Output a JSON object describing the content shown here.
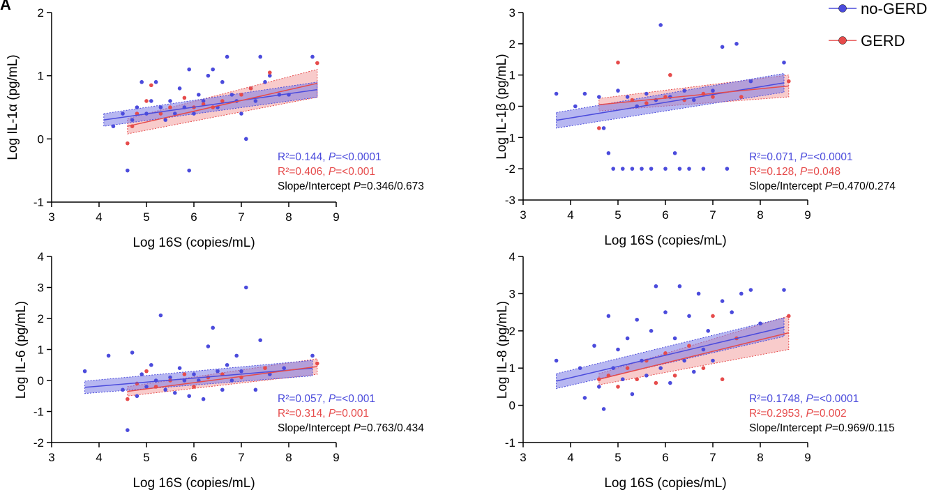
{
  "figure": {
    "panel_letter": "A",
    "colors": {
      "no_gerd": "#4b4bdc",
      "gerd": "#e64b4b",
      "no_gerd_band": "#7b7be6",
      "gerd_band": "#f3a0a0"
    }
  },
  "legend": [
    {
      "name": "no-GERD",
      "color": "#4b4bdc"
    },
    {
      "name": "GERD",
      "color": "#e64b4b"
    }
  ],
  "panels": [
    {
      "stats": [
        {
          "line1": "R²=0.144, ",
          "p_label": "P",
          "p_value": "=<0.0001",
          "color": "#4b4bdc"
        },
        {
          "line1": "R²=0.406, ",
          "p_label": "P",
          "p_value": "=<0.001",
          "color": "#e64b4b"
        },
        {
          "line1": "Slope/Intercept ",
          "p_label": "P",
          "p_value": "=0.346/0.673",
          "color": "#000000"
        }
      ]
    },
    {
      "stats": [
        {
          "line1": "R²=0.071, ",
          "p_label": "P",
          "p_value": "=<0.0001",
          "color": "#4b4bdc"
        },
        {
          "line1": "R²=0.128, ",
          "p_label": "P",
          "p_value": "=0.048",
          "color": "#e64b4b"
        },
        {
          "line1": "Slope/Intercept ",
          "p_label": "P",
          "p_value": "=0.470/0.274",
          "color": "#000000"
        }
      ]
    },
    {
      "stats": [
        {
          "line1": "R²=0.057, ",
          "p_label": "P",
          "p_value": "=<0.001",
          "color": "#4b4bdc"
        },
        {
          "line1": "R²=0.314, ",
          "p_label": "P",
          "p_value": "=0.001",
          "color": "#e64b4b"
        },
        {
          "line1": "Slope/Intercept ",
          "p_label": "P",
          "p_value": "=0.763/0.434",
          "color": "#000000"
        }
      ]
    },
    {
      "stats": [
        {
          "line1": "R²=0.1748, ",
          "p_label": "P",
          "p_value": "=<0.0001",
          "color": "#4b4bdc"
        },
        {
          "line1": "R²=0.2953, ",
          "p_label": "P",
          "p_value": "=0.002",
          "color": "#e64b4b"
        },
        {
          "line1": "Slope/Intercept ",
          "p_label": "P",
          "p_value": "=0.969/0.115",
          "color": "#000000"
        }
      ]
    }
  ],
  "chart_data": [
    {
      "type": "scatter",
      "xlabel": "Log 16S (copies/mL)",
      "ylabel": "Log IL-1α (pg/mL)",
      "xlim": [
        3,
        9
      ],
      "ylim": [
        -1,
        2
      ],
      "xticks": [
        3,
        4,
        5,
        6,
        7,
        8,
        9
      ],
      "yticks": [
        -1,
        0,
        1,
        2
      ],
      "series": [
        {
          "name": "no-GERD",
          "color": "#4b4bdc",
          "fit": {
            "x": [
              4.1,
              8.6
            ],
            "y": [
              0.3,
              0.78
            ],
            "band": [
              0.1,
              0.12
            ]
          },
          "points": [
            [
              4.3,
              0.2
            ],
            [
              4.5,
              0.4
            ],
            [
              4.6,
              -0.5
            ],
            [
              4.7,
              0.3
            ],
            [
              4.8,
              0.5
            ],
            [
              4.9,
              0.9
            ],
            [
              5.0,
              0.4
            ],
            [
              5.1,
              0.6
            ],
            [
              5.2,
              0.9
            ],
            [
              5.3,
              0.5
            ],
            [
              5.4,
              0.3
            ],
            [
              5.5,
              0.6
            ],
            [
              5.6,
              0.4
            ],
            [
              5.7,
              0.8
            ],
            [
              5.8,
              0.5
            ],
            [
              5.9,
              1.1
            ],
            [
              5.9,
              -0.5
            ],
            [
              6.0,
              0.4
            ],
            [
              6.1,
              0.7
            ],
            [
              6.2,
              0.6
            ],
            [
              6.3,
              1.0
            ],
            [
              6.4,
              1.1
            ],
            [
              6.5,
              0.5
            ],
            [
              6.6,
              0.9
            ],
            [
              6.7,
              1.3
            ],
            [
              6.8,
              0.7
            ],
            [
              6.9,
              0.6
            ],
            [
              7.0,
              0.4
            ],
            [
              7.1,
              0.0
            ],
            [
              7.2,
              0.8
            ],
            [
              7.3,
              0.6
            ],
            [
              7.4,
              1.3
            ],
            [
              7.5,
              0.9
            ],
            [
              7.6,
              1.0
            ],
            [
              7.8,
              0.7
            ],
            [
              8.0,
              0.7
            ],
            [
              8.5,
              1.3
            ]
          ]
        },
        {
          "name": "GERD",
          "color": "#e64b4b",
          "fit": {
            "x": [
              4.6,
              8.6
            ],
            "y": [
              0.2,
              0.88
            ],
            "band": [
              0.12,
              0.22
            ]
          },
          "points": [
            [
              4.6,
              -0.07
            ],
            [
              4.7,
              0.2
            ],
            [
              4.8,
              0.4
            ],
            [
              5.0,
              0.6
            ],
            [
              5.1,
              0.85
            ],
            [
              5.3,
              0.4
            ],
            [
              5.5,
              0.5
            ],
            [
              5.8,
              0.65
            ],
            [
              6.0,
              0.5
            ],
            [
              6.2,
              0.55
            ],
            [
              6.4,
              0.5
            ],
            [
              6.6,
              0.6
            ],
            [
              7.0,
              0.7
            ],
            [
              7.2,
              0.8
            ],
            [
              7.6,
              1.05
            ],
            [
              8.6,
              1.2
            ]
          ]
        }
      ]
    },
    {
      "type": "scatter",
      "xlabel": "Log 16S (copies/mL)",
      "ylabel": "Log IL-1β (pg/mL)",
      "xlim": [
        3,
        9
      ],
      "ylim": [
        -3,
        3
      ],
      "xticks": [
        3,
        4,
        5,
        6,
        7,
        8,
        9
      ],
      "yticks": [
        -3,
        -2,
        -1,
        0,
        1,
        2,
        3
      ],
      "series": [
        {
          "name": "no-GERD",
          "color": "#4b4bdc",
          "fit": {
            "x": [
              3.7,
              8.5
            ],
            "y": [
              -0.45,
              0.75
            ],
            "band": [
              0.25,
              0.3
            ]
          },
          "points": [
            [
              3.7,
              0.4
            ],
            [
              4.1,
              0.0
            ],
            [
              4.3,
              0.4
            ],
            [
              4.6,
              0.3
            ],
            [
              4.7,
              -0.7
            ],
            [
              4.8,
              -1.5
            ],
            [
              4.9,
              -2.0
            ],
            [
              5.0,
              0.5
            ],
            [
              5.1,
              -2.0
            ],
            [
              5.2,
              0.3
            ],
            [
              5.3,
              -2.0
            ],
            [
              5.4,
              0.0
            ],
            [
              5.5,
              -2.0
            ],
            [
              5.6,
              0.4
            ],
            [
              5.7,
              -2.0
            ],
            [
              5.8,
              0.2
            ],
            [
              5.9,
              2.6
            ],
            [
              6.0,
              -2.0
            ],
            [
              6.1,
              0.3
            ],
            [
              6.2,
              -1.5
            ],
            [
              6.3,
              -2.0
            ],
            [
              6.4,
              0.5
            ],
            [
              6.5,
              -2.0
            ],
            [
              6.6,
              0.2
            ],
            [
              6.8,
              -2.0
            ],
            [
              7.0,
              0.5
            ],
            [
              7.2,
              1.9
            ],
            [
              7.3,
              -2.0
            ],
            [
              7.5,
              2.0
            ],
            [
              7.8,
              0.8
            ],
            [
              8.5,
              1.4
            ]
          ]
        },
        {
          "name": "GERD",
          "color": "#e64b4b",
          "fit": {
            "x": [
              4.6,
              8.6
            ],
            "y": [
              0.05,
              0.65
            ],
            "band": [
              0.2,
              0.35
            ]
          },
          "points": [
            [
              4.6,
              -0.7
            ],
            [
              5.0,
              1.4
            ],
            [
              5.3,
              0.2
            ],
            [
              5.6,
              0.1
            ],
            [
              6.0,
              0.3
            ],
            [
              6.1,
              1.0
            ],
            [
              6.4,
              0.2
            ],
            [
              6.8,
              0.4
            ],
            [
              7.0,
              0.3
            ],
            [
              7.6,
              0.3
            ],
            [
              8.6,
              0.8
            ]
          ]
        }
      ]
    },
    {
      "type": "scatter",
      "xlabel": "Log 16S (copies/mL)",
      "ylabel": "Log IL-6 (pg/mL)",
      "xlim": [
        3,
        9
      ],
      "ylim": [
        -2,
        4
      ],
      "xticks": [
        3,
        4,
        5,
        6,
        7,
        8,
        9
      ],
      "yticks": [
        -2,
        -1,
        0,
        1,
        2,
        3,
        4
      ],
      "series": [
        {
          "name": "no-GERD",
          "color": "#4b4bdc",
          "fit": {
            "x": [
              3.7,
              8.5
            ],
            "y": [
              -0.22,
              0.4
            ],
            "band": [
              0.2,
              0.25
            ]
          },
          "points": [
            [
              3.7,
              0.3
            ],
            [
              4.2,
              0.8
            ],
            [
              4.5,
              -0.3
            ],
            [
              4.6,
              -1.6
            ],
            [
              4.7,
              0.9
            ],
            [
              4.8,
              -0.5
            ],
            [
              4.9,
              0.2
            ],
            [
              5.0,
              -0.2
            ],
            [
              5.1,
              0.5
            ],
            [
              5.2,
              0.0
            ],
            [
              5.3,
              2.1
            ],
            [
              5.4,
              -0.3
            ],
            [
              5.5,
              0.1
            ],
            [
              5.6,
              -0.4
            ],
            [
              5.7,
              0.4
            ],
            [
              5.8,
              0.0
            ],
            [
              5.9,
              -0.5
            ],
            [
              6.0,
              0.2
            ],
            [
              6.1,
              0.0
            ],
            [
              6.2,
              -0.6
            ],
            [
              6.3,
              1.1
            ],
            [
              6.4,
              1.7
            ],
            [
              6.5,
              0.3
            ],
            [
              6.6,
              -0.3
            ],
            [
              6.7,
              0.5
            ],
            [
              6.8,
              0.0
            ],
            [
              6.9,
              0.8
            ],
            [
              7.0,
              0.3
            ],
            [
              7.1,
              3.0
            ],
            [
              7.3,
              -0.3
            ],
            [
              7.4,
              1.3
            ],
            [
              7.6,
              0.2
            ],
            [
              7.9,
              0.4
            ],
            [
              8.5,
              0.8
            ]
          ]
        },
        {
          "name": "GERD",
          "color": "#e64b4b",
          "fit": {
            "x": [
              4.6,
              8.6
            ],
            "y": [
              -0.35,
              0.45
            ],
            "band": [
              0.15,
              0.25
            ]
          },
          "points": [
            [
              4.6,
              -0.6
            ],
            [
              4.8,
              -0.1
            ],
            [
              5.0,
              0.3
            ],
            [
              5.2,
              -0.2
            ],
            [
              5.5,
              0.0
            ],
            [
              5.8,
              0.2
            ],
            [
              6.0,
              -0.2
            ],
            [
              6.3,
              0.1
            ],
            [
              6.6,
              0.2
            ],
            [
              7.0,
              0.1
            ],
            [
              7.5,
              0.4
            ],
            [
              8.6,
              0.55
            ]
          ]
        }
      ]
    },
    {
      "type": "scatter",
      "xlabel": "Log 16S (copies/mL)",
      "ylabel": "Log IL-8 (pg/mL)",
      "xlim": [
        3,
        9
      ],
      "ylim": [
        -1,
        4
      ],
      "xticks": [
        3,
        4,
        5,
        6,
        7,
        8,
        9
      ],
      "yticks": [
        -1,
        0,
        1,
        2,
        3,
        4
      ],
      "series": [
        {
          "name": "no-GERD",
          "color": "#4b4bdc",
          "fit": {
            "x": [
              3.7,
              8.5
            ],
            "y": [
              0.65,
              2.1
            ],
            "band": [
              0.2,
              0.25
            ]
          },
          "points": [
            [
              3.7,
              1.2
            ],
            [
              4.2,
              1.0
            ],
            [
              4.3,
              0.2
            ],
            [
              4.5,
              1.6
            ],
            [
              4.6,
              0.5
            ],
            [
              4.7,
              -0.1
            ],
            [
              4.8,
              2.4
            ],
            [
              4.9,
              1.0
            ],
            [
              5.0,
              1.5
            ],
            [
              5.1,
              0.7
            ],
            [
              5.2,
              1.8
            ],
            [
              5.3,
              0.3
            ],
            [
              5.4,
              2.3
            ],
            [
              5.5,
              1.2
            ],
            [
              5.6,
              0.8
            ],
            [
              5.7,
              2.0
            ],
            [
              5.8,
              3.2
            ],
            [
              5.9,
              1.0
            ],
            [
              6.0,
              2.5
            ],
            [
              6.1,
              0.6
            ],
            [
              6.2,
              1.8
            ],
            [
              6.3,
              3.2
            ],
            [
              6.4,
              1.2
            ],
            [
              6.5,
              2.4
            ],
            [
              6.6,
              0.9
            ],
            [
              6.7,
              3.0
            ],
            [
              6.8,
              1.5
            ],
            [
              6.9,
              2.0
            ],
            [
              7.0,
              1.2
            ],
            [
              7.2,
              2.8
            ],
            [
              7.4,
              2.5
            ],
            [
              7.6,
              3.0
            ],
            [
              7.8,
              3.1
            ],
            [
              8.0,
              2.2
            ],
            [
              8.5,
              3.1
            ]
          ]
        },
        {
          "name": "GERD",
          "color": "#e64b4b",
          "fit": {
            "x": [
              4.6,
              8.6
            ],
            "y": [
              0.7,
              1.95
            ],
            "band": [
              0.15,
              0.45
            ]
          },
          "points": [
            [
              4.6,
              0.7
            ],
            [
              4.8,
              0.8
            ],
            [
              5.0,
              0.5
            ],
            [
              5.2,
              1.0
            ],
            [
              5.4,
              0.7
            ],
            [
              5.6,
              1.2
            ],
            [
              5.8,
              0.6
            ],
            [
              6.0,
              1.4
            ],
            [
              6.2,
              0.8
            ],
            [
              6.5,
              1.6
            ],
            [
              6.8,
              1.0
            ],
            [
              7.0,
              2.4
            ],
            [
              7.2,
              0.7
            ],
            [
              7.5,
              1.8
            ],
            [
              8.6,
              2.4
            ]
          ]
        }
      ]
    }
  ]
}
